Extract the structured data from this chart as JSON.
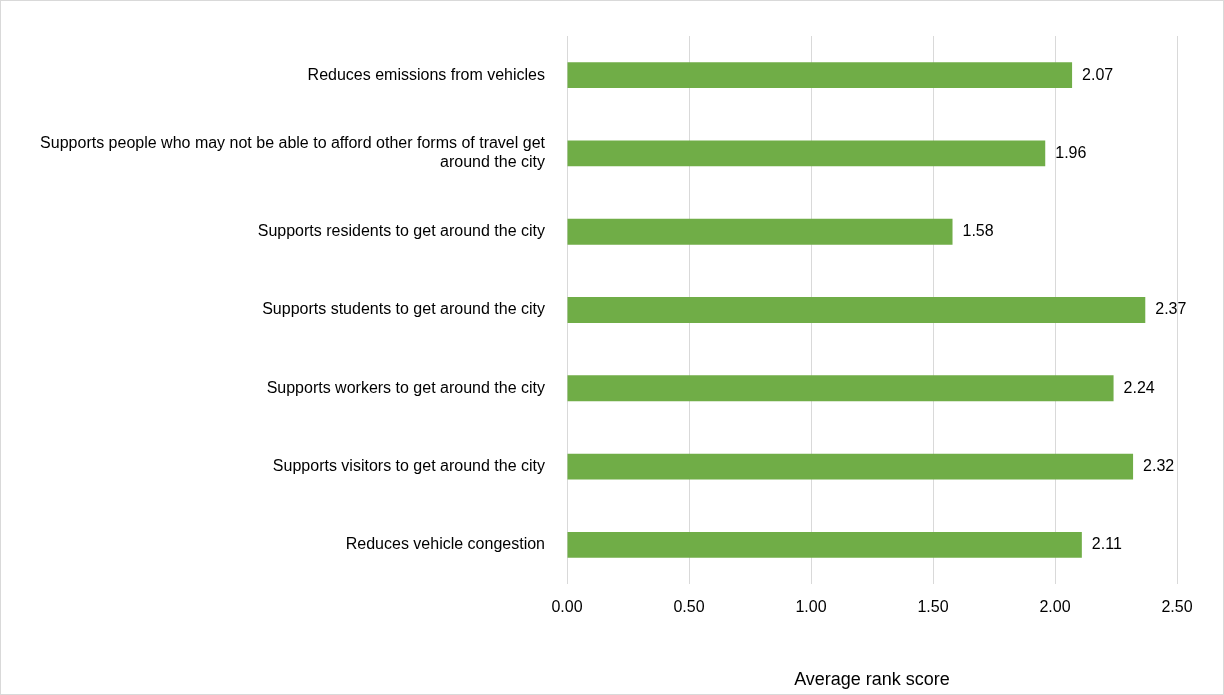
{
  "chart_data": {
    "type": "bar",
    "orientation": "horizontal",
    "xlabel": "Average rank score",
    "categories": [
      "Reduces emissions from vehicles",
      "Supports people who may not be able to afford other forms of travel get around the city",
      "Supports residents to get around the city",
      "Supports students to get around the city",
      "Supports workers to get around the city",
      "Supports visitors to get around the city",
      "Reduces vehicle congestion"
    ],
    "values": [
      2.07,
      1.96,
      1.58,
      2.37,
      2.24,
      2.32,
      2.11
    ],
    "color": "#70ad47",
    "xlim": [
      0,
      2.5
    ],
    "xticks": [
      {
        "value": 0,
        "label": "0.00"
      },
      {
        "value": 0.5,
        "label": "0.50"
      },
      {
        "value": 1,
        "label": "1.00"
      },
      {
        "value": 1.5,
        "label": "1.50"
      },
      {
        "value": 2,
        "label": "2.00"
      },
      {
        "value": 2.5,
        "label": "2.50"
      }
    ],
    "grid": "x",
    "data_labels": true,
    "legend": false
  }
}
